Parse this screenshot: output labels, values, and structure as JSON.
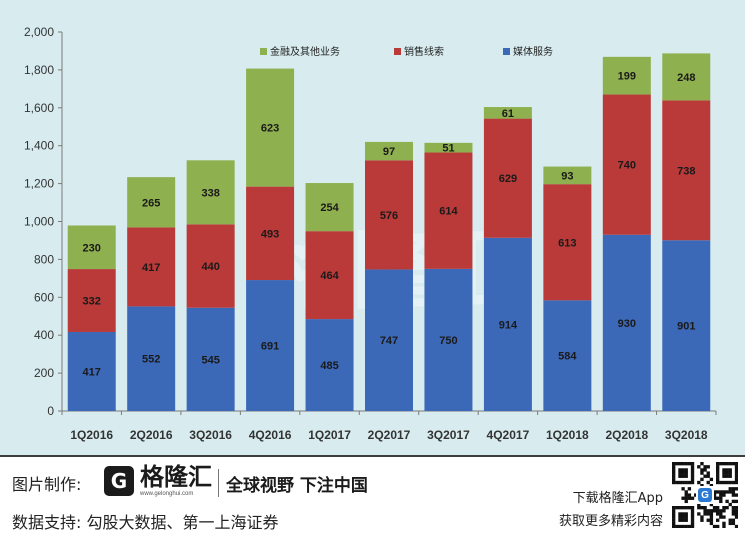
{
  "chart_data": {
    "type": "bar",
    "stacked": true,
    "categories": [
      "1Q2016",
      "2Q2016",
      "3Q2016",
      "4Q2016",
      "1Q2017",
      "2Q2017",
      "3Q2017",
      "4Q2017",
      "1Q2018",
      "2Q2018",
      "3Q2018"
    ],
    "series": [
      {
        "name": "媒体服务",
        "color": "#3c68b8",
        "values": [
          417,
          552,
          545,
          691,
          485,
          747,
          750,
          914,
          584,
          930,
          901
        ]
      },
      {
        "name": "销售线索",
        "color": "#b93a38",
        "values": [
          332,
          417,
          440,
          493,
          464,
          576,
          614,
          629,
          613,
          740,
          738
        ]
      },
      {
        "name": "金融及其他业务",
        "color": "#8fb04f",
        "values": [
          230,
          265,
          338,
          623,
          254,
          97,
          51,
          61,
          93,
          199,
          248
        ]
      }
    ],
    "ylim": [
      0,
      2000
    ],
    "yticks": [
      "0",
      "200",
      "400",
      "600",
      "800",
      "1,000",
      "1,200",
      "1,400",
      "1,600",
      "1,800",
      "2,000"
    ],
    "ytick_values": [
      0,
      200,
      400,
      600,
      800,
      1000,
      1200,
      1400,
      1600,
      1800,
      2000
    ],
    "grid": false,
    "legend_position": "top",
    "watermark": "格隆汇"
  },
  "footer": {
    "producer_label": "图片制作:",
    "brand_logo_letter": "G",
    "brand_name": "格隆汇",
    "brand_url": "www.gelonghui.com",
    "slogan": "全球视野 下注中国",
    "source_label": "数据支持: 勾股大数据、第一上海证券",
    "cta_line1": "下载格隆汇App",
    "cta_line2": "获取更多精彩内容",
    "qr_center_mark": "G"
  }
}
